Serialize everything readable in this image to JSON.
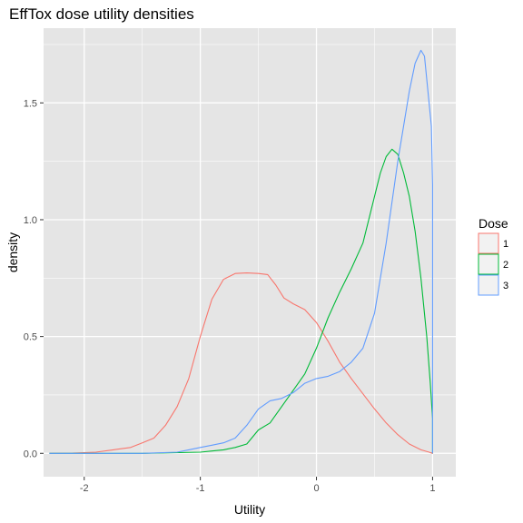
{
  "chart_data": {
    "type": "line",
    "title": "EffTox dose utility densities",
    "xlabel": "Utility",
    "ylabel": "density",
    "xlim": [
      -2.35,
      1.2
    ],
    "ylim": [
      -0.1,
      1.82
    ],
    "x_ticks": [
      -2,
      -1,
      0,
      1
    ],
    "x_tick_labels": [
      "-2",
      "-1",
      "0",
      "1"
    ],
    "y_ticks": [
      0.0,
      0.5,
      1.0,
      1.5
    ],
    "y_tick_labels": [
      "0.0",
      "0.5",
      "1.0",
      "1.5"
    ],
    "grid": true,
    "panel_background": "#e5e5e5",
    "grid_color": "#ffffff",
    "legend": {
      "title": "Dose",
      "placement": "right"
    },
    "series": [
      {
        "name": "1",
        "color": "#F8766D",
        "points": [
          [
            -2.3,
            0.0
          ],
          [
            -2.1,
            0.001
          ],
          [
            -1.9,
            0.005
          ],
          [
            -1.75,
            0.015
          ],
          [
            -1.6,
            0.025
          ],
          [
            -1.5,
            0.045
          ],
          [
            -1.4,
            0.065
          ],
          [
            -1.3,
            0.12
          ],
          [
            -1.2,
            0.2
          ],
          [
            -1.1,
            0.32
          ],
          [
            -1.0,
            0.5
          ],
          [
            -0.9,
            0.66
          ],
          [
            -0.8,
            0.745
          ],
          [
            -0.7,
            0.77
          ],
          [
            -0.6,
            0.772
          ],
          [
            -0.5,
            0.77
          ],
          [
            -0.42,
            0.765
          ],
          [
            -0.35,
            0.72
          ],
          [
            -0.28,
            0.665
          ],
          [
            -0.2,
            0.64
          ],
          [
            -0.1,
            0.615
          ],
          [
            0.0,
            0.56
          ],
          [
            0.1,
            0.48
          ],
          [
            0.2,
            0.39
          ],
          [
            0.3,
            0.32
          ],
          [
            0.4,
            0.255
          ],
          [
            0.5,
            0.19
          ],
          [
            0.6,
            0.13
          ],
          [
            0.7,
            0.08
          ],
          [
            0.8,
            0.04
          ],
          [
            0.9,
            0.015
          ],
          [
            0.97,
            0.005
          ],
          [
            1.0,
            0.0
          ],
          [
            1.0,
            0.005
          ]
        ]
      },
      {
        "name": "2",
        "color": "#00BA38",
        "points": [
          [
            -2.3,
            0.0
          ],
          [
            -1.5,
            0.0
          ],
          [
            -1.0,
            0.005
          ],
          [
            -0.9,
            0.01
          ],
          [
            -0.8,
            0.015
          ],
          [
            -0.7,
            0.025
          ],
          [
            -0.6,
            0.04
          ],
          [
            -0.5,
            0.1
          ],
          [
            -0.4,
            0.13
          ],
          [
            -0.3,
            0.2
          ],
          [
            -0.2,
            0.27
          ],
          [
            -0.1,
            0.34
          ],
          [
            0.0,
            0.45
          ],
          [
            0.1,
            0.58
          ],
          [
            0.2,
            0.69
          ],
          [
            0.3,
            0.79
          ],
          [
            0.4,
            0.9
          ],
          [
            0.45,
            1.0
          ],
          [
            0.5,
            1.1
          ],
          [
            0.55,
            1.2
          ],
          [
            0.6,
            1.27
          ],
          [
            0.65,
            1.302
          ],
          [
            0.7,
            1.28
          ],
          [
            0.75,
            1.2
          ],
          [
            0.8,
            1.1
          ],
          [
            0.85,
            0.95
          ],
          [
            0.9,
            0.75
          ],
          [
            0.95,
            0.5
          ],
          [
            0.98,
            0.3
          ],
          [
            1.0,
            0.15
          ],
          [
            1.0,
            0.0
          ]
        ]
      },
      {
        "name": "3",
        "color": "#619CFF",
        "points": [
          [
            -2.3,
            0.0
          ],
          [
            -1.5,
            0.0
          ],
          [
            -1.2,
            0.005
          ],
          [
            -1.1,
            0.015
          ],
          [
            -1.0,
            0.025
          ],
          [
            -0.9,
            0.035
          ],
          [
            -0.8,
            0.045
          ],
          [
            -0.7,
            0.065
          ],
          [
            -0.6,
            0.12
          ],
          [
            -0.5,
            0.19
          ],
          [
            -0.4,
            0.225
          ],
          [
            -0.3,
            0.235
          ],
          [
            -0.2,
            0.26
          ],
          [
            -0.1,
            0.3
          ],
          [
            0.0,
            0.32
          ],
          [
            0.1,
            0.33
          ],
          [
            0.2,
            0.35
          ],
          [
            0.3,
            0.39
          ],
          [
            0.4,
            0.45
          ],
          [
            0.5,
            0.6
          ],
          [
            0.6,
            0.9
          ],
          [
            0.7,
            1.25
          ],
          [
            0.8,
            1.55
          ],
          [
            0.85,
            1.67
          ],
          [
            0.9,
            1.725
          ],
          [
            0.93,
            1.7
          ],
          [
            0.96,
            1.55
          ],
          [
            0.99,
            1.4
          ],
          [
            1.0,
            1.15
          ],
          [
            1.0,
            0.0
          ]
        ]
      }
    ]
  }
}
